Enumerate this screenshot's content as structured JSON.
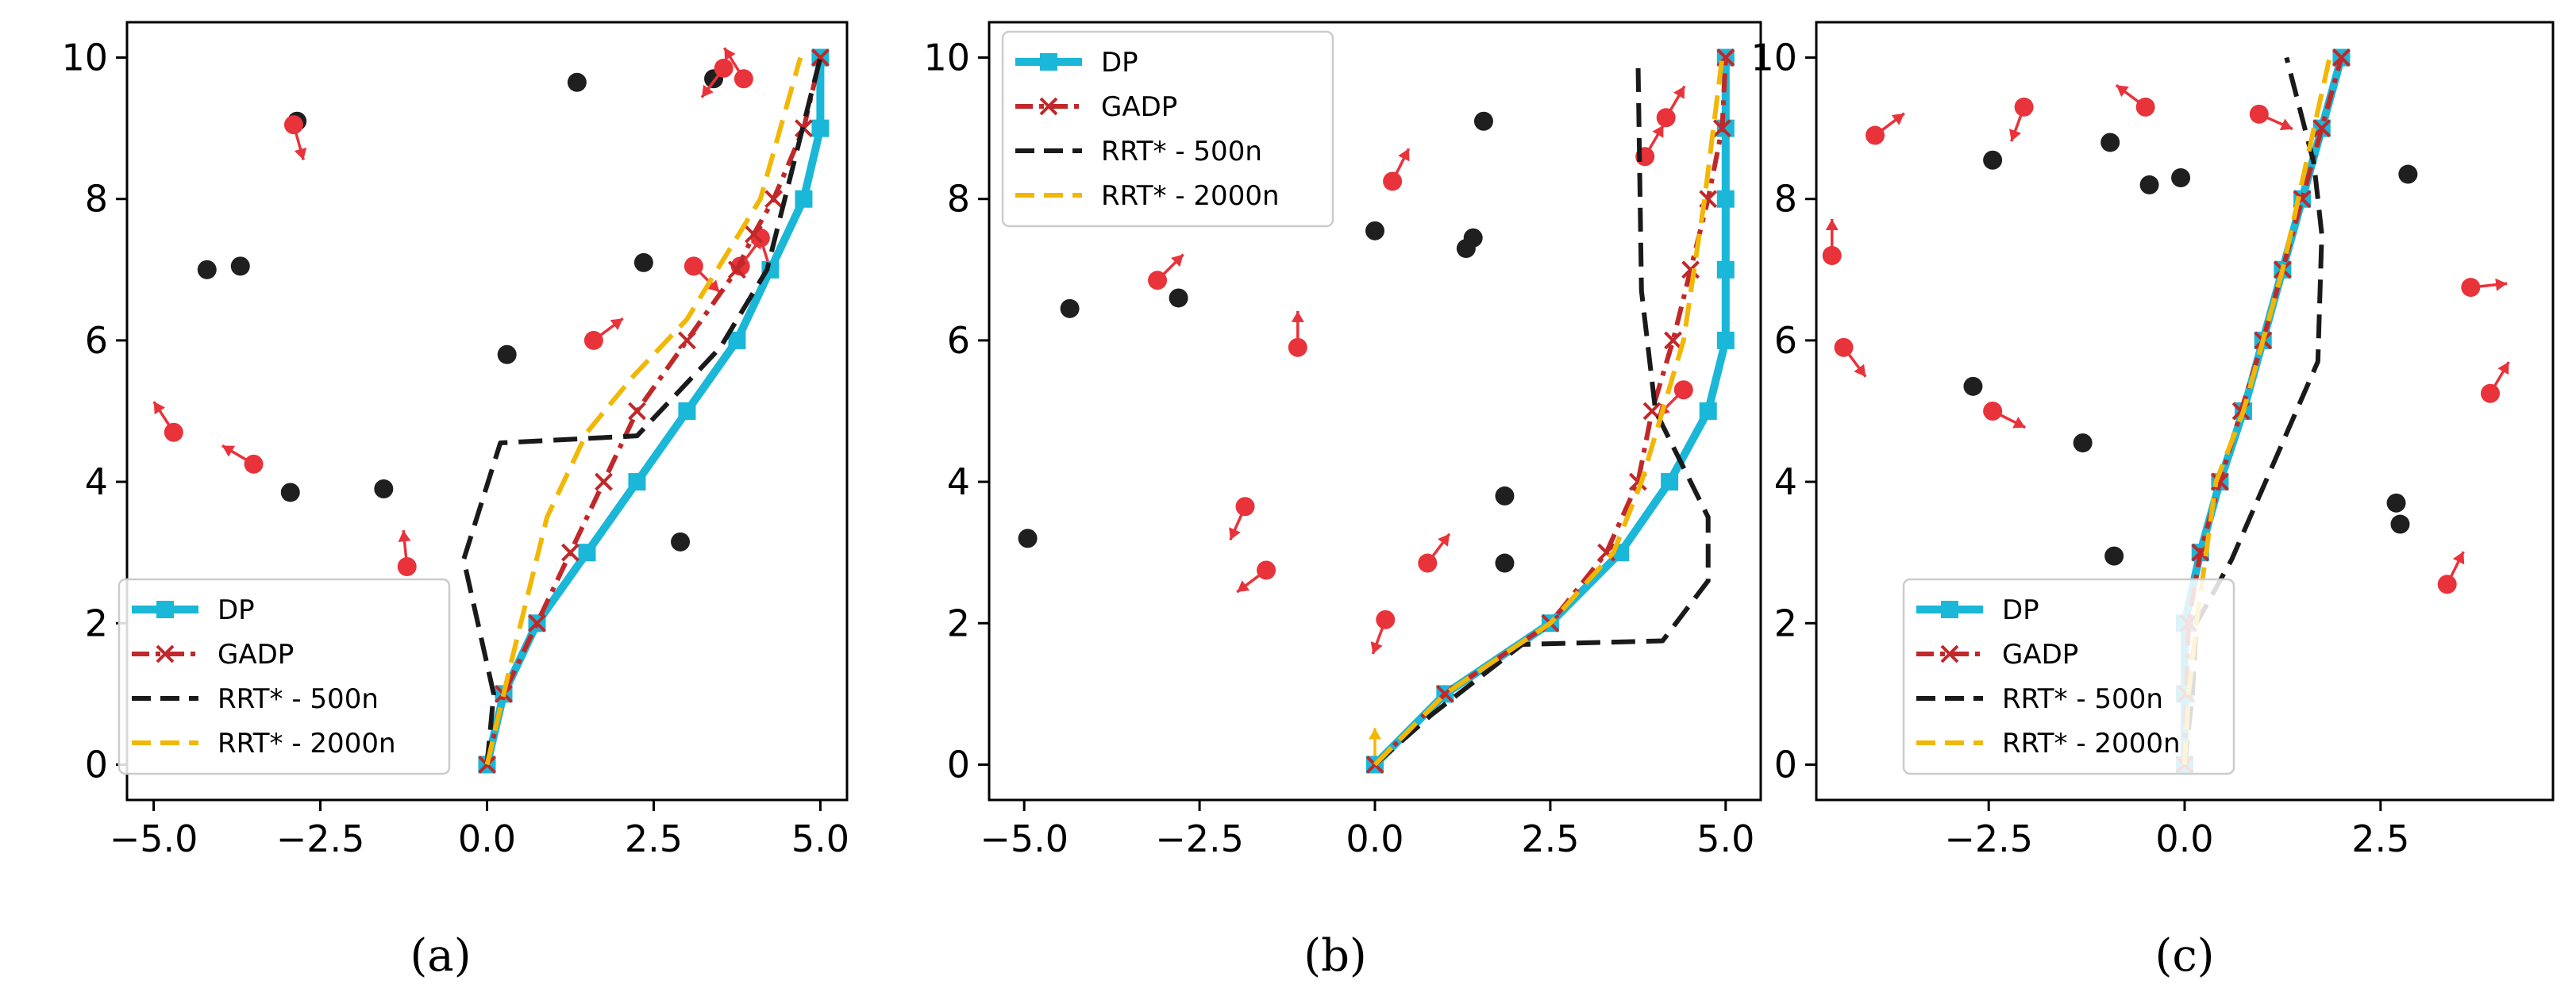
{
  "chart_data": [
    {
      "type": "line",
      "caption": "(a)",
      "xlim": [
        -5.4,
        5.4
      ],
      "ylim": [
        -0.5,
        10.5
      ],
      "xticks": [
        -5.0,
        -2.5,
        0.0,
        2.5,
        5.0
      ],
      "xtick_labels": [
        "−5.0",
        "−2.5",
        "0.0",
        "2.5",
        "5.0"
      ],
      "yticks": [
        0,
        2,
        4,
        6,
        8,
        10
      ],
      "ytick_labels": [
        "0",
        "2",
        "4",
        "6",
        "8",
        "10"
      ],
      "legend_position": "lower-left",
      "series": [
        {
          "name": "DP",
          "color": "#1ab7d8",
          "style": "solid",
          "marker": "square",
          "x": [
            0,
            0.25,
            0.75,
            1.5,
            2.25,
            3.0,
            3.75,
            4.25,
            4.75,
            5.0,
            5.0
          ],
          "y": [
            0,
            1,
            2,
            3,
            4,
            5,
            6,
            7,
            8,
            9,
            10
          ]
        },
        {
          "name": "GADP",
          "color": "#c0282a",
          "style": "dashdot",
          "marker": "x",
          "x": [
            0,
            0.25,
            0.75,
            1.25,
            1.75,
            2.25,
            3.0,
            3.75,
            4.0,
            4.3,
            4.75,
            5.0
          ],
          "y": [
            0,
            1,
            2,
            3,
            4,
            5,
            6,
            7,
            7.5,
            8,
            9,
            10
          ]
        },
        {
          "name": "RRT* - 500n",
          "color": "#1a1a1a",
          "style": "dashed",
          "marker": "none",
          "x": [
            0,
            0.1,
            -0.35,
            0.2,
            2.25,
            3.5,
            4.2,
            5.0
          ],
          "y": [
            0,
            1.0,
            2.9,
            4.55,
            4.65,
            5.9,
            7.0,
            10.0
          ]
        },
        {
          "name": "RRT* - 2000n",
          "color": "#f2b705",
          "style": "dashed",
          "marker": "none",
          "x": [
            0,
            0.35,
            0.9,
            1.5,
            2.2,
            3.0,
            4.1,
            4.7
          ],
          "y": [
            0,
            1.4,
            3.5,
            4.7,
            5.5,
            6.3,
            8.0,
            10.0
          ]
        }
      ],
      "static_obstacles": [
        [
          -2.85,
          9.1
        ],
        [
          1.35,
          9.65
        ],
        [
          3.4,
          9.7
        ],
        [
          -4.2,
          7.0
        ],
        [
          -3.7,
          7.05
        ],
        [
          2.35,
          7.1
        ],
        [
          0.3,
          5.8
        ],
        [
          -2.95,
          3.85
        ],
        [
          -1.55,
          3.9
        ],
        [
          2.9,
          3.15
        ]
      ],
      "dynamic_obstacles": [
        {
          "pos": [
            -2.9,
            9.05
          ],
          "dir": [
            0.25,
            -0.9
          ]
        },
        {
          "pos": [
            3.55,
            9.85
          ],
          "dir": [
            -0.6,
            -0.8
          ]
        },
        {
          "pos": [
            3.85,
            9.7
          ],
          "dir": [
            -0.5,
            0.8
          ]
        },
        {
          "pos": [
            3.1,
            7.05
          ],
          "dir": [
            0.7,
            -0.7
          ]
        },
        {
          "pos": [
            3.8,
            7.05
          ],
          "dir": [
            0.6,
            0.8
          ]
        },
        {
          "pos": [
            4.1,
            7.45
          ],
          "dir": [
            0.3,
            -0.95
          ]
        },
        {
          "pos": [
            1.6,
            6.0
          ],
          "dir": [
            0.8,
            0.6
          ]
        },
        {
          "pos": [
            -4.7,
            4.7
          ],
          "dir": [
            -0.55,
            0.85
          ]
        },
        {
          "pos": [
            -3.5,
            4.25
          ],
          "dir": [
            -0.85,
            0.5
          ]
        },
        {
          "pos": [
            -1.2,
            2.8
          ],
          "dir": [
            -0.1,
            1.0
          ]
        }
      ]
    },
    {
      "type": "line",
      "caption": "(b)",
      "xlim": [
        -5.5,
        5.5
      ],
      "ylim": [
        -0.5,
        10.5
      ],
      "xticks": [
        -5.0,
        -2.5,
        0.0,
        2.5,
        5.0
      ],
      "xtick_labels": [
        "−5.0",
        "−2.5",
        "0.0",
        "2.5",
        "5.0"
      ],
      "yticks": [
        0,
        2,
        4,
        6,
        8,
        10
      ],
      "ytick_labels": [
        "0",
        "2",
        "4",
        "6",
        "8",
        "10"
      ],
      "legend_position": "upper-left",
      "series": [
        {
          "name": "DP",
          "color": "#1ab7d8",
          "style": "solid",
          "marker": "square",
          "x": [
            0,
            1.0,
            2.5,
            3.5,
            4.2,
            4.75,
            5.0,
            5.0,
            5.0,
            5.0,
            5.0
          ],
          "y": [
            0,
            1,
            2,
            3,
            4,
            5,
            6,
            7,
            8,
            9,
            10
          ]
        },
        {
          "name": "GADP",
          "color": "#c0282a",
          "style": "dashdot",
          "marker": "x",
          "x": [
            0,
            1.0,
            2.5,
            3.3,
            3.75,
            3.95,
            4.25,
            4.5,
            4.75,
            4.95,
            5.0
          ],
          "y": [
            0,
            1,
            2,
            3,
            4,
            5,
            6,
            7,
            8,
            9,
            10
          ]
        },
        {
          "name": "RRT* - 500n",
          "color": "#1a1a1a",
          "style": "dashed",
          "marker": "none",
          "x": [
            0,
            0.8,
            2.1,
            4.1,
            4.75,
            4.75,
            4.0,
            3.8,
            3.75
          ],
          "y": [
            0,
            0.7,
            1.7,
            1.75,
            2.6,
            3.5,
            5.0,
            6.7,
            10.0
          ]
        },
        {
          "name": "RRT* - 2000n",
          "color": "#f2b705",
          "style": "dashed",
          "marker": "none",
          "x": [
            0,
            1.0,
            2.5,
            3.4,
            3.8,
            4.1,
            4.4,
            4.7,
            4.95
          ],
          "y": [
            0,
            1.0,
            2.0,
            3.0,
            4.0,
            5.0,
            6.0,
            8.0,
            10.0
          ]
        }
      ],
      "static_obstacles": [
        [
          1.55,
          9.1
        ],
        [
          0,
          7.55
        ],
        [
          1.3,
          7.3
        ],
        [
          1.4,
          7.45
        ],
        [
          -2.8,
          6.6
        ],
        [
          -4.35,
          6.45
        ],
        [
          1.85,
          3.8
        ],
        [
          1.85,
          2.85
        ],
        [
          -4.95,
          3.2
        ]
      ],
      "dynamic_obstacles": [
        {
          "pos": [
            3.85,
            8.6
          ],
          "dir": [
            0.5,
            0.85
          ]
        },
        {
          "pos": [
            4.15,
            9.15
          ],
          "dir": [
            0.5,
            0.85
          ]
        },
        {
          "pos": [
            0.25,
            8.25
          ],
          "dir": [
            0.45,
            0.9
          ]
        },
        {
          "pos": [
            -3.1,
            6.85
          ],
          "dir": [
            0.7,
            0.7
          ]
        },
        {
          "pos": [
            -1.1,
            5.9
          ],
          "dir": [
            0,
            1
          ]
        },
        {
          "pos": [
            4.4,
            5.3
          ],
          "dir": [
            -0.7,
            -0.7
          ]
        },
        {
          "pos": [
            -1.85,
            3.65
          ],
          "dir": [
            -0.4,
            -0.9
          ]
        },
        {
          "pos": [
            -1.55,
            2.75
          ],
          "dir": [
            -0.8,
            -0.6
          ]
        },
        {
          "pos": [
            0.75,
            2.85
          ],
          "dir": [
            0.6,
            0.8
          ]
        },
        {
          "pos": [
            0.15,
            2.05
          ],
          "dir": [
            -0.35,
            -0.95
          ]
        },
        {
          "pos": [
            0.0,
            0.0
          ],
          "dir": [
            0,
            1
          ],
          "color": "#f2b705"
        }
      ]
    },
    {
      "type": "line",
      "caption": "(c)",
      "xlim": [
        -4.7,
        4.7
      ],
      "ylim": [
        -0.5,
        10.5
      ],
      "xticks": [
        -2.5,
        0.0,
        2.5
      ],
      "xtick_labels": [
        "−2.5",
        "0.0",
        "2.5"
      ],
      "yticks": [
        0,
        2,
        4,
        6,
        8,
        10
      ],
      "ytick_labels": [
        "0",
        "2",
        "4",
        "6",
        "8",
        "10"
      ],
      "legend_position": "lower-left",
      "series": [
        {
          "name": "DP",
          "color": "#1ab7d8",
          "style": "solid",
          "marker": "square",
          "x": [
            0,
            0,
            0,
            0.2,
            0.45,
            0.75,
            1.0,
            1.25,
            1.5,
            1.75,
            2.0
          ],
          "y": [
            0,
            1,
            2,
            3,
            4,
            5,
            6,
            7,
            8,
            9,
            10
          ]
        },
        {
          "name": "GADP",
          "color": "#c0282a",
          "style": "dashdot",
          "marker": "x",
          "x": [
            0,
            0.02,
            0.05,
            0.2,
            0.45,
            0.72,
            1.0,
            1.25,
            1.5,
            1.75,
            2.0
          ],
          "y": [
            0,
            1,
            2,
            3,
            4,
            5,
            6,
            7,
            8,
            9,
            10
          ]
        },
        {
          "name": "RRT* - 500n",
          "color": "#1a1a1a",
          "style": "dashed",
          "marker": "none",
          "x": [
            0,
            0.1,
            0.15,
            0.6,
            1.7,
            1.75,
            1.65,
            1.3
          ],
          "y": [
            0,
            1.0,
            2.0,
            2.9,
            5.7,
            7.5,
            8.5,
            10.0
          ]
        },
        {
          "name": "RRT* - 2000n",
          "color": "#f2b705",
          "style": "dashed",
          "marker": "none",
          "x": [
            0,
            0.05,
            0.15,
            0.4,
            0.75,
            1.0,
            1.25,
            1.55,
            1.85
          ],
          "y": [
            0,
            1.0,
            2.0,
            4.0,
            5.0,
            6.0,
            7.0,
            8.5,
            10.0
          ]
        }
      ],
      "static_obstacles": [
        [
          -2.45,
          8.55
        ],
        [
          -0.95,
          8.8
        ],
        [
          -0.05,
          8.3
        ],
        [
          -0.45,
          8.2
        ],
        [
          2.85,
          8.35
        ],
        [
          -2.7,
          5.35
        ],
        [
          -1.3,
          4.55
        ],
        [
          2.7,
          3.7
        ],
        [
          2.75,
          3.4
        ],
        [
          -0.9,
          2.95
        ]
      ],
      "dynamic_obstacles": [
        {
          "pos": [
            -3.95,
            8.9
          ],
          "dir": [
            0.8,
            0.6
          ]
        },
        {
          "pos": [
            -2.05,
            9.3
          ],
          "dir": [
            -0.35,
            -0.95
          ]
        },
        {
          "pos": [
            -0.5,
            9.3
          ],
          "dir": [
            -0.8,
            0.6
          ]
        },
        {
          "pos": [
            0.95,
            9.2
          ],
          "dir": [
            0.9,
            -0.4
          ]
        },
        {
          "pos": [
            -4.5,
            7.2
          ],
          "dir": [
            0,
            1
          ]
        },
        {
          "pos": [
            3.65,
            6.75
          ],
          "dir": [
            0.95,
            0.1
          ]
        },
        {
          "pos": [
            -4.35,
            5.9
          ],
          "dir": [
            0.6,
            -0.8
          ]
        },
        {
          "pos": [
            3.9,
            5.25
          ],
          "dir": [
            0.5,
            0.85
          ]
        },
        {
          "pos": [
            -2.45,
            5.0
          ],
          "dir": [
            0.9,
            -0.45
          ]
        },
        {
          "pos": [
            3.35,
            2.55
          ],
          "dir": [
            0.45,
            0.9
          ]
        }
      ]
    }
  ]
}
